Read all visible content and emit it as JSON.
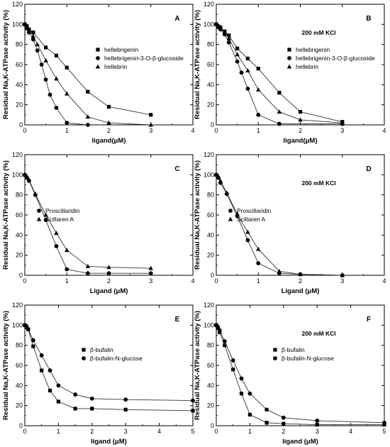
{
  "chart_data": [
    {
      "type": "line",
      "panel": "A",
      "condition": "",
      "xlabel": "ligand(μM)",
      "ylabel": "Residual Na,K-ATPase activity (%)",
      "xlim": [
        0,
        4
      ],
      "ylim": [
        0,
        120
      ],
      "xticks": [
        "0",
        "1",
        "2",
        "3",
        "4"
      ],
      "yticks": [
        "0",
        "20",
        "40",
        "60",
        "80",
        "100",
        "120"
      ],
      "legend_position": "top-right",
      "grid": false,
      "series": [
        {
          "name": "hellebrigenin",
          "marker": "square",
          "x": [
            0,
            0.05,
            0.1,
            0.2,
            0.5,
            0.75,
            1,
            1.5,
            2,
            3
          ],
          "y": [
            100,
            98,
            95,
            92,
            77,
            69,
            57,
            33,
            18,
            10
          ]
        },
        {
          "name": "hellebrigenin-3-O-β-glucoside",
          "marker": "circle",
          "x": [
            0,
            0.05,
            0.1,
            0.2,
            0.3,
            0.4,
            0.5,
            0.6,
            0.75,
            1,
            1.5
          ],
          "y": [
            100,
            96,
            92,
            85,
            74,
            60,
            45,
            30,
            17,
            2,
            0
          ]
        },
        {
          "name": "hellebrin",
          "marker": "triangle",
          "x": [
            0,
            0.05,
            0.1,
            0.2,
            0.3,
            0.5,
            0.75,
            1,
            1.5,
            2,
            3
          ],
          "y": [
            100,
            97,
            94,
            88,
            80,
            64,
            46,
            31,
            8,
            2,
            0
          ]
        }
      ]
    },
    {
      "type": "line",
      "panel": "B",
      "condition": "200 mM KCl",
      "xlabel": "ligand(μM)",
      "ylabel": "Residual Na,K-ATPase activity (%)",
      "xlim": [
        0,
        4
      ],
      "ylim": [
        0,
        120
      ],
      "xticks": [
        "0",
        "1",
        "2",
        "3",
        "4"
      ],
      "yticks": [
        "0",
        "20",
        "40",
        "60",
        "80",
        "100",
        "120"
      ],
      "legend_position": "top-right",
      "grid": false,
      "series": [
        {
          "name": "hellebrigenin",
          "marker": "square",
          "x": [
            0,
            0.05,
            0.1,
            0.2,
            0.3,
            0.5,
            0.75,
            1,
            1.5,
            2,
            3
          ],
          "y": [
            100,
            98,
            97,
            93,
            89,
            76,
            66,
            56,
            32,
            13,
            3
          ]
        },
        {
          "name": "hellebrigenin-3-O-β-glucoside",
          "marker": "circle",
          "x": [
            0,
            0.05,
            0.1,
            0.2,
            0.3,
            0.5,
            0.6,
            0.75,
            1,
            1.5,
            3
          ],
          "y": [
            100,
            97,
            95,
            90,
            82,
            63,
            52,
            36,
            10,
            1,
            1
          ]
        },
        {
          "name": "hellebrin",
          "marker": "triangle",
          "x": [
            0,
            0.05,
            0.1,
            0.2,
            0.3,
            0.5,
            0.75,
            1,
            1.5,
            2,
            3
          ],
          "y": [
            100,
            98,
            96,
            92,
            86,
            70,
            54,
            35,
            13,
            5,
            2
          ]
        }
      ]
    },
    {
      "type": "line",
      "panel": "C",
      "condition": "",
      "xlabel": "Ligand (μM)",
      "ylabel": "Residual Na,K-ATPase activity (%)",
      "xlim": [
        0,
        4
      ],
      "ylim": [
        0,
        120
      ],
      "xticks": [
        "0",
        "1",
        "2",
        "3",
        "4"
      ],
      "yticks": [
        "0",
        "20",
        "40",
        "60",
        "80",
        "100",
        "120"
      ],
      "legend_position": "center",
      "grid": false,
      "series": [
        {
          "name": "Proscillaridin",
          "marker": "circle",
          "x": [
            0,
            0.05,
            0.1,
            0.25,
            0.5,
            0.75,
            1,
            1.5,
            2,
            3
          ],
          "y": [
            100,
            97,
            94,
            80,
            55,
            29,
            6,
            2,
            2,
            2
          ]
        },
        {
          "name": "Scillaren A",
          "marker": "triangle",
          "x": [
            0,
            0.05,
            0.1,
            0.25,
            0.5,
            0.75,
            1,
            1.5,
            2,
            3
          ],
          "y": [
            100,
            98,
            95,
            81,
            60,
            42,
            25,
            9,
            8,
            7
          ]
        }
      ]
    },
    {
      "type": "line",
      "panel": "D",
      "condition": "200 mM KCl",
      "xlabel": "Ligand (μM)",
      "ylabel": "Residual Na,K-ATPase activity (%)",
      "xlim": [
        0,
        4
      ],
      "ylim": [
        0,
        120
      ],
      "xticks": [
        "0",
        "1",
        "2",
        "3",
        "4"
      ],
      "yticks": [
        "0",
        "20",
        "40",
        "60",
        "80",
        "100",
        "120"
      ],
      "legend_position": "center",
      "grid": false,
      "series": [
        {
          "name": "Proscillaridin",
          "marker": "circle",
          "x": [
            0,
            0.05,
            0.1,
            0.25,
            0.5,
            0.75,
            1,
            1.5,
            2,
            3
          ],
          "y": [
            100,
            97,
            92,
            81,
            59,
            35,
            12,
            2,
            1,
            0
          ]
        },
        {
          "name": "Scillaren A",
          "marker": "triangle",
          "x": [
            0,
            0.05,
            0.1,
            0.25,
            0.5,
            0.75,
            1,
            1.5,
            2,
            3
          ],
          "y": [
            100,
            98,
            94,
            82,
            61,
            43,
            26,
            4,
            1,
            0
          ]
        }
      ]
    },
    {
      "type": "line",
      "panel": "E",
      "condition": "",
      "xlabel": "ligand (μM)",
      "ylabel": "Residual Na,K-ATPase activity (%)",
      "xlim": [
        0,
        5
      ],
      "ylim": [
        0,
        120
      ],
      "xticks": [
        "0",
        "1",
        "2",
        "3",
        "4",
        "5"
      ],
      "yticks": [
        "0",
        "20",
        "40",
        "60",
        "80",
        "100",
        "120"
      ],
      "legend_position": "center-right",
      "grid": false,
      "series": [
        {
          "name": "β-bufalin",
          "marker": "square",
          "x": [
            0,
            0.05,
            0.1,
            0.25,
            0.5,
            0.75,
            1,
            1.5,
            2,
            3,
            5
          ],
          "y": [
            100,
            98,
            96,
            79,
            55,
            35,
            24,
            17,
            17,
            16,
            15
          ]
        },
        {
          "name": "β-bufalin-N-glucose",
          "marker": "circle",
          "x": [
            0,
            0.05,
            0.1,
            0.25,
            0.5,
            0.75,
            1,
            1.5,
            2,
            3,
            5
          ],
          "y": [
            100,
            99,
            96,
            85,
            70,
            55,
            40,
            31,
            27,
            26,
            25
          ]
        }
      ]
    },
    {
      "type": "line",
      "panel": "F",
      "condition": "200 mM KCl",
      "xlabel": "ligand (μM)",
      "ylabel": "Residual Na,K-ATPase activity (%)",
      "xlim": [
        0,
        5
      ],
      "ylim": [
        0,
        120
      ],
      "xticks": [
        "0",
        "1",
        "2",
        "3",
        "4",
        "5"
      ],
      "yticks": [
        "0",
        "20",
        "40",
        "60",
        "80",
        "100",
        "120"
      ],
      "legend_position": "center-right",
      "grid": false,
      "series": [
        {
          "name": "β-bufalin",
          "marker": "square",
          "x": [
            0,
            0.05,
            0.1,
            0.25,
            0.5,
            0.75,
            1,
            1.5,
            2,
            3,
            5
          ],
          "y": [
            100,
            97,
            93,
            80,
            56,
            32,
            11,
            3,
            2,
            1,
            1
          ]
        },
        {
          "name": "β-bufalin-N-glucose",
          "marker": "circle",
          "x": [
            0,
            0.05,
            0.1,
            0.25,
            0.5,
            0.75,
            1,
            1.5,
            2,
            3,
            5
          ],
          "y": [
            100,
            98,
            95,
            84,
            65,
            47,
            32,
            16,
            8,
            5,
            3
          ]
        }
      ]
    }
  ]
}
